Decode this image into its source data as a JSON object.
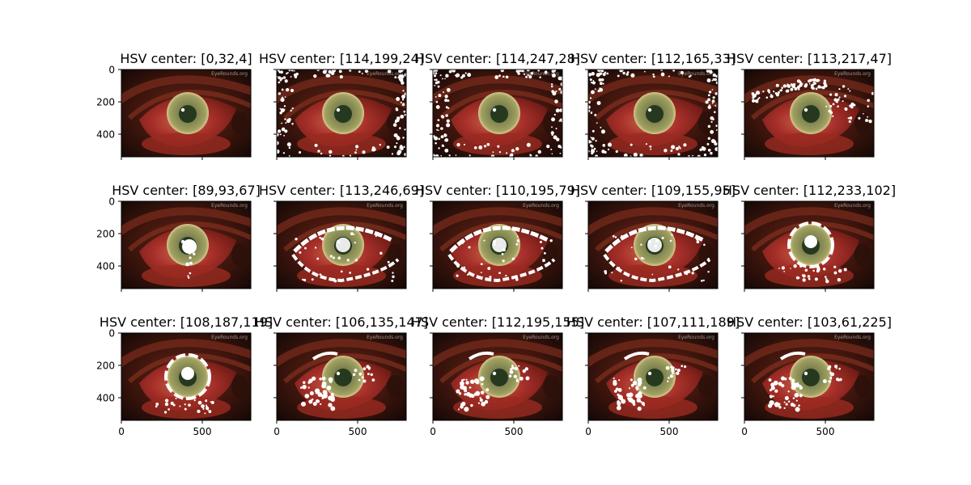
{
  "chart_data": {
    "type": "image-grid",
    "xlim": [
      0,
      800
    ],
    "ylim": [
      540,
      0
    ],
    "xticks": [
      0,
      500
    ],
    "yticks": [
      0,
      200,
      400
    ],
    "watermark": "EyeRounds.org",
    "colors": {
      "mask": "#ffffff",
      "dark_bg": "#1a0c08",
      "skin": "#5a1e14",
      "sclera": "#9e2a22",
      "iris": "#8a8a4e",
      "pupil": "#26391f"
    },
    "panels": [
      {
        "title": "HSV center: [0,32,4]",
        "mask": "none"
      },
      {
        "title": "HSV center: [114,199,24]",
        "mask": "dark_edges"
      },
      {
        "title": "HSV center: [114,247,28]",
        "mask": "dark_edges"
      },
      {
        "title": "HSV center: [112,165,33]",
        "mask": "dark_edges"
      },
      {
        "title": "HSV center: [113,217,47]",
        "mask": "eyelid"
      },
      {
        "title": "HSV center: [89,93,67]",
        "mask": "iris_spot"
      },
      {
        "title": "HSV center: [113,246,69]",
        "mask": "eye_outline"
      },
      {
        "title": "HSV center: [110,195,79]",
        "mask": "eye_outline"
      },
      {
        "title": "HSV center: [109,155,95]",
        "mask": "eye_outline"
      },
      {
        "title": "HSV center: [112,233,102]",
        "mask": "iris_ring"
      },
      {
        "title": "HSV center: [108,187,119]",
        "mask": "iris_ring"
      },
      {
        "title": "HSV center: [106,135,147]",
        "mask": "sclera_patches"
      },
      {
        "title": "HSV center: [112,195,155]",
        "mask": "sclera_patches"
      },
      {
        "title": "HSV center: [107,111,189]",
        "mask": "sclera_patches"
      },
      {
        "title": "HSV center: [103,61,225]",
        "mask": "sclera_patches"
      }
    ]
  }
}
